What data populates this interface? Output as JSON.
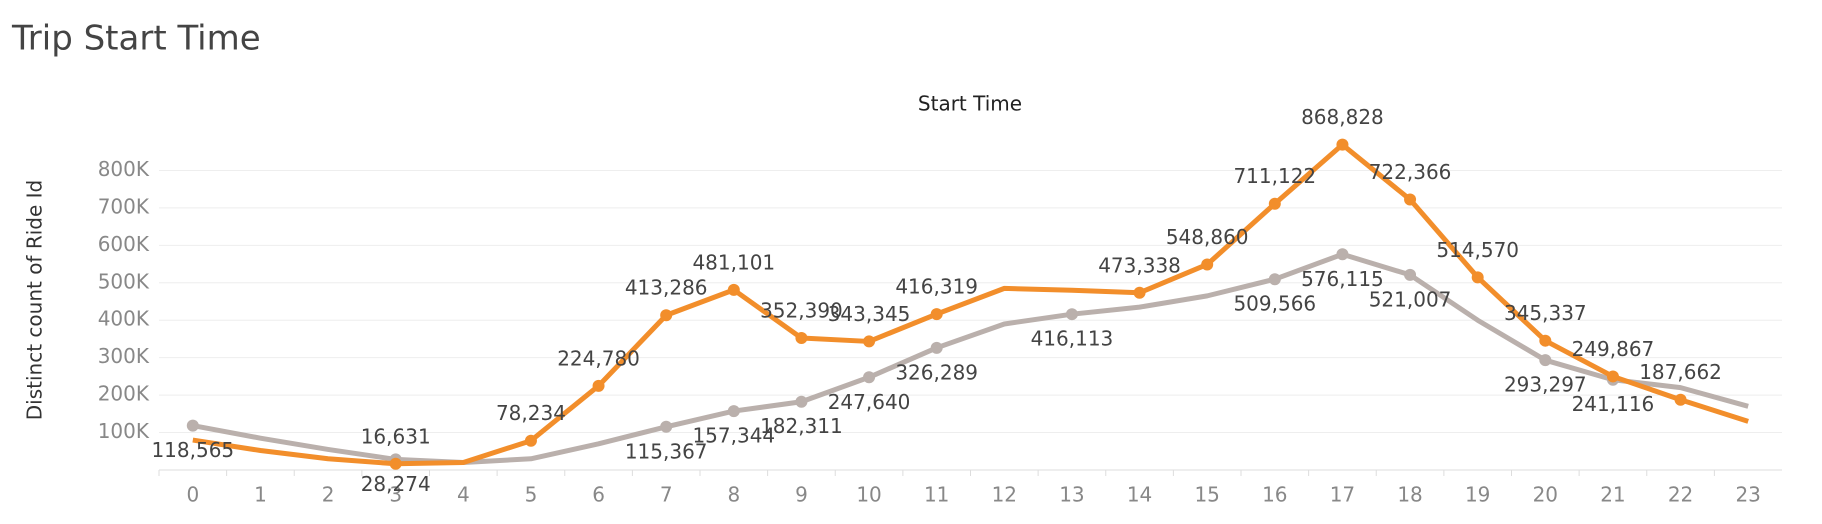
{
  "chart_data": {
    "type": "line",
    "title": "Trip Start Time",
    "x_label": "Start Time",
    "y_label": "Distinct count of Ride Id",
    "categories": [
      "0",
      "1",
      "2",
      "3",
      "4",
      "5",
      "6",
      "7",
      "8",
      "9",
      "10",
      "11",
      "12",
      "13",
      "14",
      "15",
      "16",
      "17",
      "18",
      "19",
      "20",
      "21",
      "22",
      "23"
    ],
    "series": [
      {
        "color": "#f28e2b",
        "values": [
          80000,
          52000,
          30000,
          16631,
          20000,
          78234,
          224780,
          413286,
          481101,
          352390,
          343345,
          416319,
          485000,
          480000,
          473338,
          548860,
          711122,
          868828,
          722366,
          514570,
          345337,
          249867,
          187662,
          130000
        ],
        "value_labels": [
          null,
          null,
          null,
          "16,631",
          null,
          "78,234",
          "224,780",
          "413,286",
          "481,101",
          "352,390",
          "343,345",
          "416,319",
          null,
          null,
          "473,338",
          "548,860",
          "711,122",
          "868,828",
          "722,366",
          "514,570",
          "345,337",
          "249,867",
          "187,662",
          null
        ]
      },
      {
        "color": "#bab0ac",
        "values": [
          118565,
          85000,
          55000,
          28274,
          20000,
          30000,
          70000,
          115367,
          157344,
          182311,
          247640,
          326289,
          390000,
          416113,
          435000,
          465000,
          509566,
          576115,
          521007,
          400000,
          293297,
          241116,
          220000,
          170000
        ],
        "value_labels": [
          "118,565",
          null,
          null,
          "28,274",
          null,
          null,
          null,
          "115,367",
          "157,344",
          "182,311",
          "247,640",
          "326,289",
          null,
          "416,113",
          null,
          null,
          "509,566",
          "576,115",
          "521,007",
          null,
          "293,297",
          "241,116",
          null,
          null
        ]
      }
    ],
    "ylim": [
      0,
      900000
    ],
    "yticks": [
      {
        "value": 100000,
        "label": "100K"
      },
      {
        "value": 200000,
        "label": "200K"
      },
      {
        "value": 300000,
        "label": "300K"
      },
      {
        "value": 400000,
        "label": "400K"
      },
      {
        "value": 500000,
        "label": "500K"
      },
      {
        "value": 600000,
        "label": "600K"
      },
      {
        "value": 700000,
        "label": "700K"
      },
      {
        "value": 800000,
        "label": "800K"
      }
    ],
    "grid": true
  }
}
